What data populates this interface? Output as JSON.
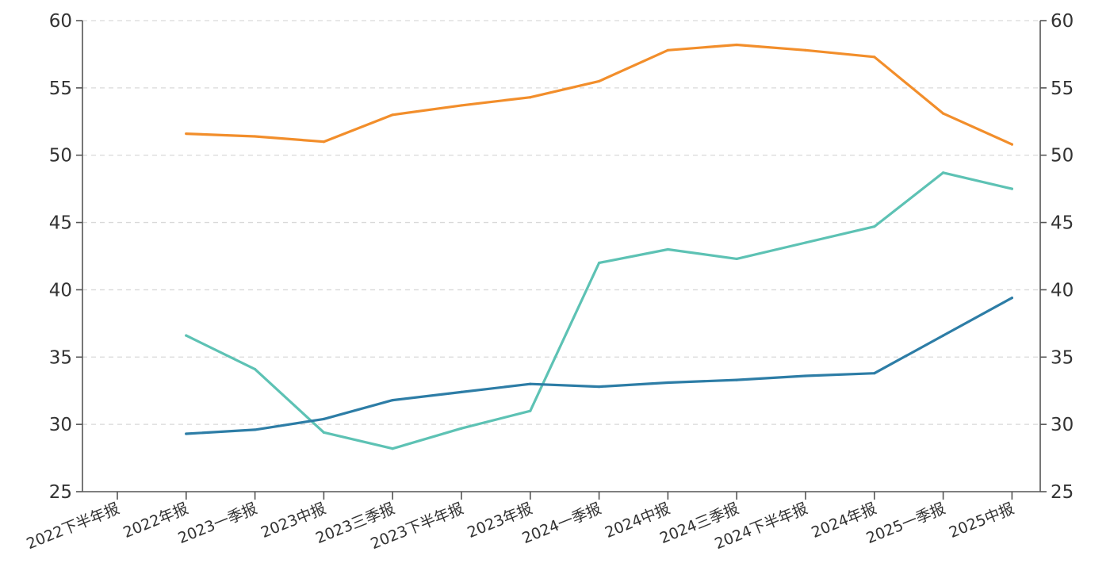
{
  "chart_data": {
    "type": "line",
    "categories": [
      "2022下半年报",
      "2022年报",
      "2023一季报",
      "2023中报",
      "2023三季报",
      "2023下半年报",
      "2023年报",
      "2024一季报",
      "2024中报",
      "2024三季报",
      "2024下半年报",
      "2024年报",
      "2025一季报",
      "2025中报"
    ],
    "series": [
      {
        "color": "#F28E2B",
        "values": [
          null,
          51.6,
          51.4,
          51.0,
          53.0,
          53.7,
          54.3,
          55.5,
          57.8,
          58.2,
          57.8,
          57.3,
          53.1,
          50.8
        ]
      },
      {
        "color": "#5DC2B4",
        "values": [
          null,
          36.6,
          34.1,
          29.4,
          28.2,
          29.7,
          31.0,
          42.0,
          43.0,
          42.3,
          43.5,
          44.7,
          48.7,
          47.5
        ]
      },
      {
        "color": "#2D7DA6",
        "values": [
          null,
          29.3,
          29.6,
          30.4,
          31.8,
          32.4,
          33.0,
          32.8,
          33.1,
          33.3,
          33.6,
          33.8,
          36.6,
          39.4
        ]
      }
    ],
    "y_axis_left": {
      "min": 25,
      "max": 60,
      "ticks": [
        "25",
        "30",
        "35",
        "40",
        "45",
        "50",
        "55",
        "60"
      ]
    },
    "y_axis_right": {
      "min": 25,
      "max": 60,
      "ticks": [
        "25",
        "30",
        "35",
        "40",
        "45",
        "50",
        "55",
        "60"
      ]
    },
    "grid": "horizontal-dashed",
    "legend": "none",
    "title": "",
    "xlabel": "",
    "ylabel": ""
  }
}
